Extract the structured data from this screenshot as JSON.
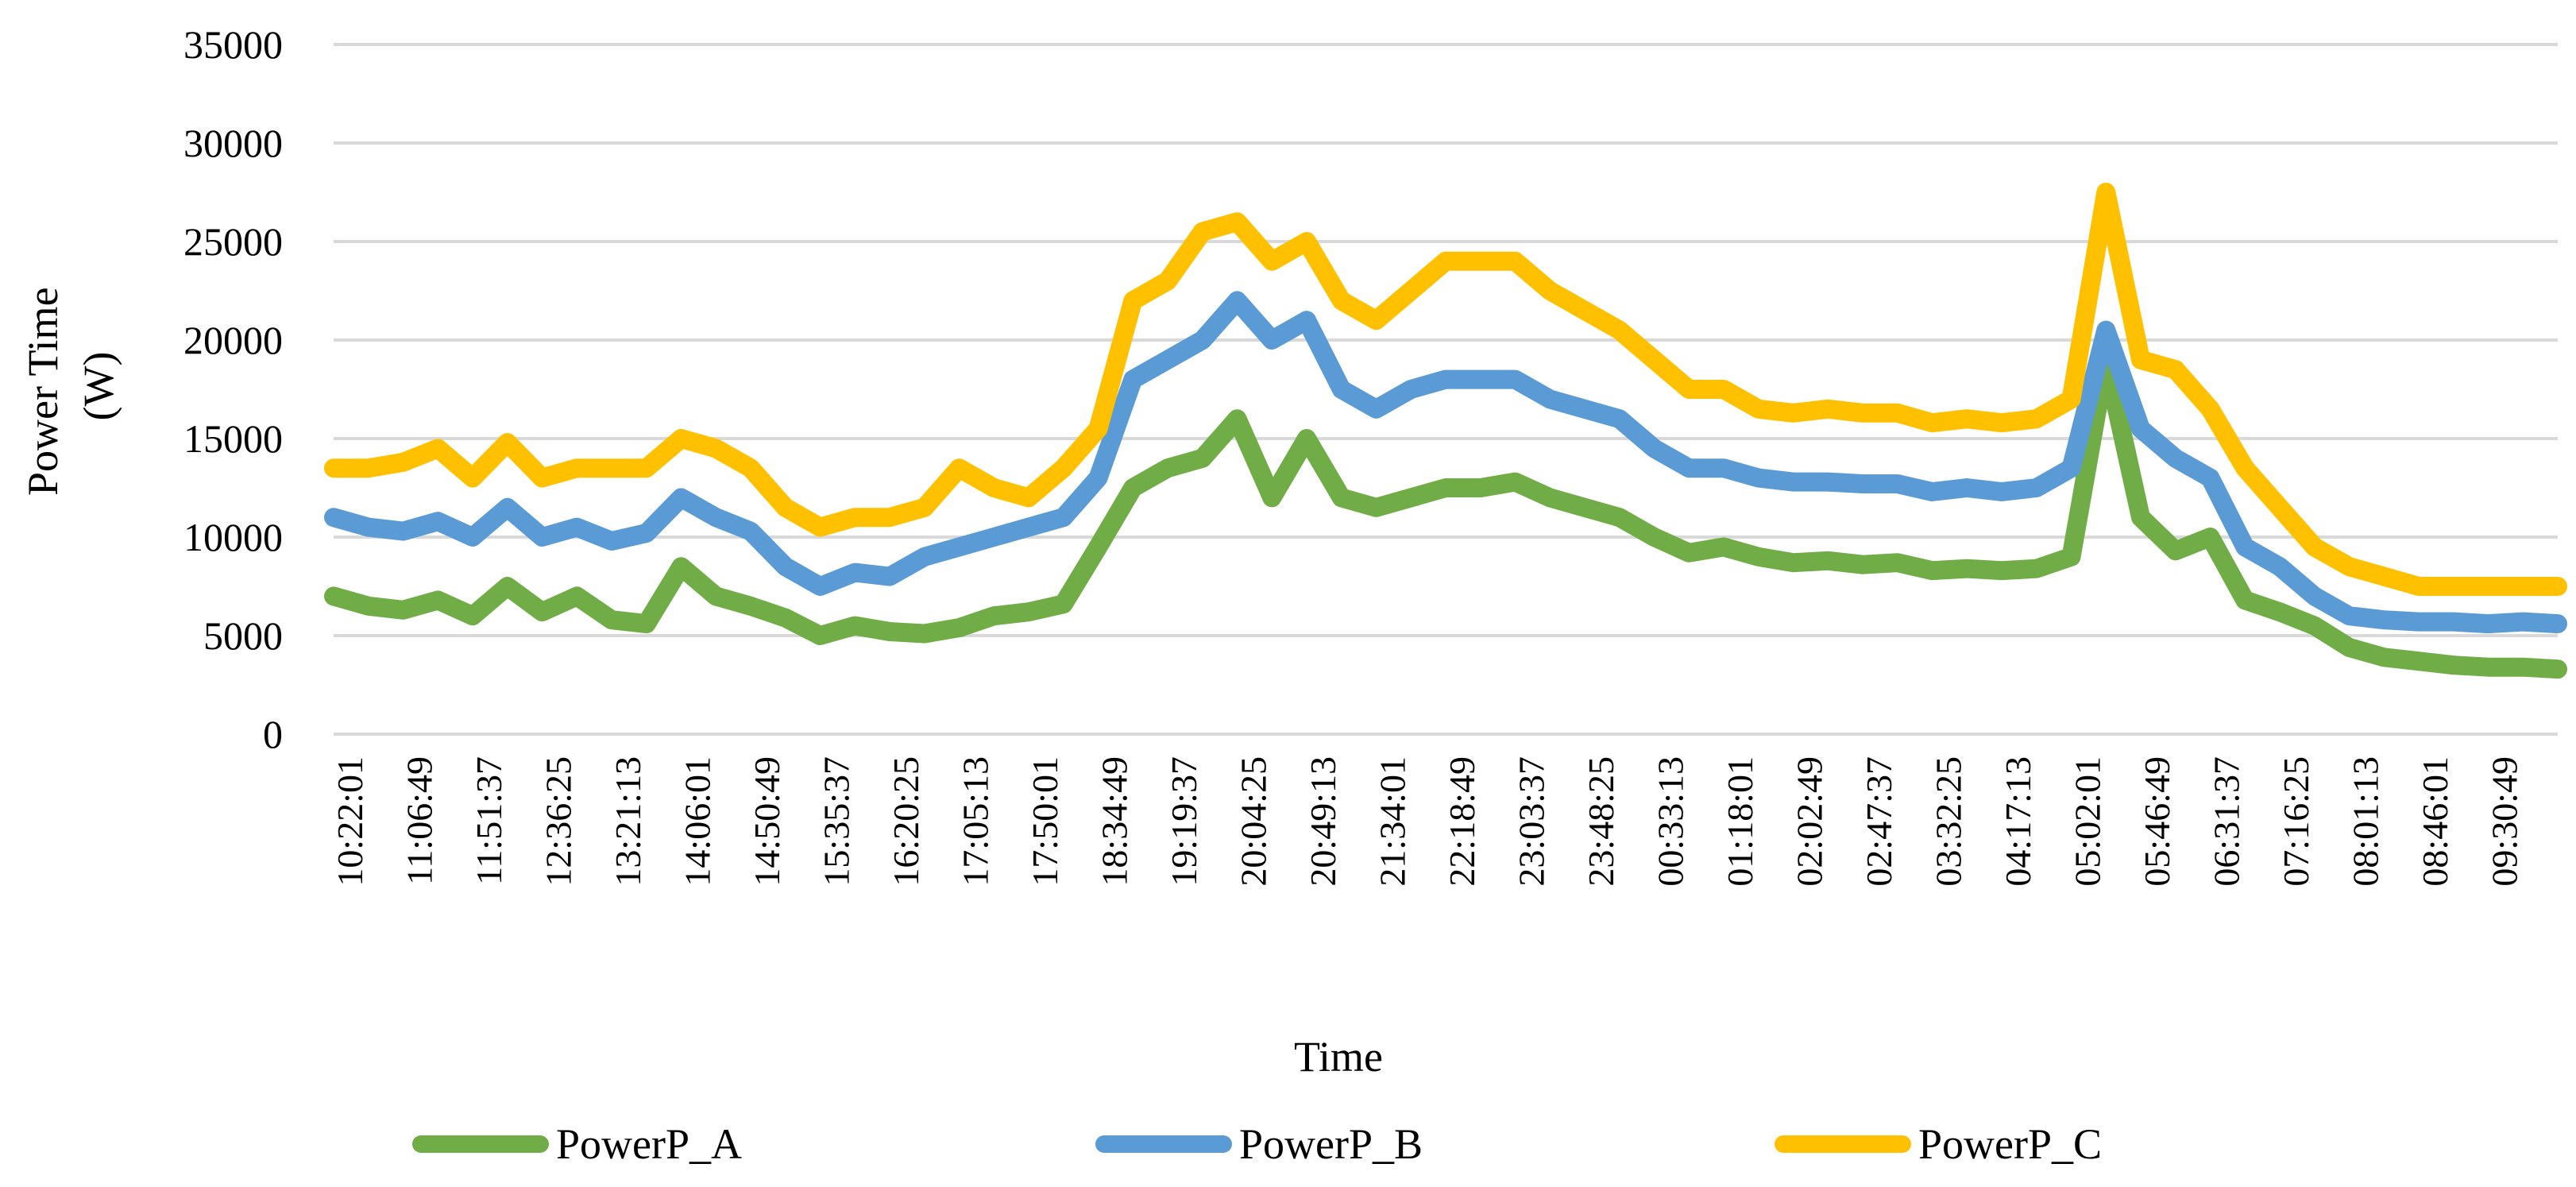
{
  "chart_data": {
    "type": "line",
    "title": "",
    "xlabel": "Time",
    "ylabel": [
      "Power Time",
      "(W)"
    ],
    "ylim": [
      0,
      35000
    ],
    "yticks": [
      0,
      5000,
      10000,
      15000,
      20000,
      25000,
      30000,
      35000
    ],
    "grid": true,
    "legend_position": "bottom",
    "x_tick_labels": [
      "10:22:01",
      "11:06:49",
      "11:51:37",
      "12:36:25",
      "13:21:13",
      "14:06:01",
      "14:50:49",
      "15:35:37",
      "16:20:25",
      "17:05:13",
      "17:50:01",
      "18:34:49",
      "19:19:37",
      "20:04:25",
      "20:49:13",
      "21:34:01",
      "22:18:49",
      "23:03:37",
      "23:48:25",
      "00:33:13",
      "01:18:01",
      "02:02:49",
      "02:47:37",
      "03:32:25",
      "04:17:13",
      "05:02:01",
      "05:46:49",
      "06:31:37",
      "07:16:25",
      "08:01:13",
      "08:46:01",
      "09:30:49"
    ],
    "x": [
      "10:22:01",
      "10:44:25",
      "11:06:49",
      "11:29:13",
      "11:51:37",
      "12:14:01",
      "12:36:25",
      "12:58:49",
      "13:21:13",
      "13:43:37",
      "14:06:01",
      "14:28:25",
      "14:50:49",
      "15:13:13",
      "15:35:37",
      "15:58:01",
      "16:20:25",
      "16:42:49",
      "17:05:13",
      "17:27:37",
      "17:50:01",
      "18:12:25",
      "18:34:49",
      "18:57:13",
      "19:19:37",
      "19:42:01",
      "20:04:25",
      "20:26:49",
      "20:49:13",
      "21:11:37",
      "21:34:01",
      "21:56:25",
      "22:18:49",
      "22:41:13",
      "23:03:37",
      "23:26:01",
      "23:48:25",
      "00:10:49",
      "00:33:13",
      "00:55:37",
      "01:18:01",
      "01:40:25",
      "02:02:49",
      "02:25:13",
      "02:47:37",
      "03:10:01",
      "03:32:25",
      "03:54:49",
      "04:17:13",
      "04:39:37",
      "05:02:01",
      "05:24:25",
      "05:46:49",
      "06:09:13",
      "06:31:37",
      "06:54:01",
      "07:16:25",
      "07:38:49",
      "08:01:13",
      "08:23:37",
      "08:46:01",
      "09:08:25",
      "09:30:49",
      "09:53:13",
      "10:15:37"
    ],
    "series": [
      {
        "name": "PowerP_A",
        "color": "#70ad47",
        "values": [
          7000,
          6500,
          6300,
          6800,
          6000,
          7500,
          6200,
          7000,
          5800,
          5600,
          8500,
          7000,
          6500,
          5900,
          5000,
          5500,
          5200,
          5100,
          5400,
          6000,
          6200,
          6600,
          9500,
          12500,
          13500,
          14000,
          16000,
          12000,
          15000,
          12000,
          11500,
          12000,
          12500,
          12500,
          12800,
          12000,
          11500,
          11000,
          10000,
          9200,
          9500,
          9000,
          8700,
          8800,
          8600,
          8700,
          8300,
          8400,
          8300,
          8400,
          9000,
          19000,
          11000,
          9300,
          10000,
          6800,
          6200,
          5500,
          4400,
          3900,
          3700,
          3500,
          3400,
          3400,
          3300
        ]
      },
      {
        "name": "PowerP_B",
        "color": "#5b9bd5",
        "values": [
          11000,
          10500,
          10300,
          10800,
          10000,
          11500,
          10000,
          10500,
          9800,
          10200,
          12000,
          11000,
          10300,
          8500,
          7500,
          8200,
          8000,
          9000,
          9500,
          10000,
          10500,
          11000,
          13000,
          18000,
          19000,
          20000,
          22000,
          20000,
          21000,
          17500,
          16500,
          17500,
          18000,
          18000,
          18000,
          17000,
          16500,
          16000,
          14500,
          13500,
          13500,
          13000,
          12800,
          12800,
          12700,
          12700,
          12300,
          12500,
          12300,
          12500,
          13500,
          20500,
          15500,
          14000,
          13000,
          9500,
          8500,
          7000,
          6000,
          5800,
          5700,
          5700,
          5600,
          5700,
          5600
        ]
      },
      {
        "name": "PowerP_C",
        "color": "#ffc000",
        "values": [
          13500,
          13500,
          13800,
          14500,
          13000,
          14800,
          13000,
          13500,
          13500,
          13500,
          15000,
          14500,
          13500,
          11500,
          10500,
          11000,
          11000,
          11500,
          13500,
          12500,
          12000,
          13500,
          15500,
          22000,
          23000,
          25500,
          26000,
          24000,
          25000,
          22000,
          21000,
          22500,
          24000,
          24000,
          24000,
          22500,
          21500,
          20500,
          19000,
          17500,
          17500,
          16500,
          16300,
          16500,
          16300,
          16300,
          15800,
          16000,
          15800,
          16000,
          17000,
          27500,
          19000,
          18500,
          16500,
          13500,
          11500,
          9500,
          8500,
          8000,
          7500,
          7500,
          7500,
          7500,
          7500
        ]
      }
    ]
  }
}
